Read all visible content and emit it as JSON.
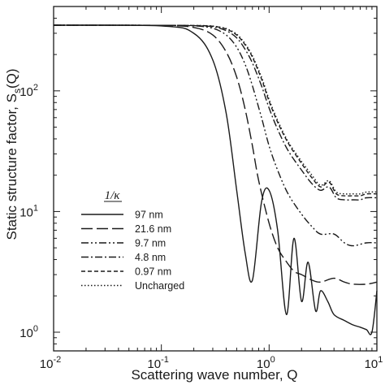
{
  "chart_data": {
    "type": "line",
    "xscale": "log",
    "yscale": "log",
    "xlim": [
      0.01,
      10
    ],
    "ylim": [
      0.7,
      500
    ],
    "xlabel": "Scattering wave number, Q",
    "ylabel": "Static structure factor, S_s(Q)",
    "x_ticks": [
      {
        "value": 0.01,
        "base": "10",
        "exp": "-2"
      },
      {
        "value": 0.1,
        "base": "10",
        "exp": "-1"
      },
      {
        "value": 1,
        "base": "10",
        "exp": "0"
      },
      {
        "value": 10,
        "base": "10",
        "exp": "1"
      }
    ],
    "y_ticks": [
      {
        "value": 1,
        "base": "10",
        "exp": "0"
      },
      {
        "value": 10,
        "base": "10",
        "exp": "1"
      },
      {
        "value": 100,
        "base": "10",
        "exp": "2"
      }
    ],
    "legend": {
      "title": "1/κ",
      "placement": "lower-left"
    },
    "series": [
      {
        "name": "97 nm",
        "dash": "solid",
        "x": [
          0.01,
          0.1,
          0.2,
          0.3,
          0.4,
          0.5,
          0.6,
          0.7,
          0.85,
          1.0,
          1.2,
          1.45,
          1.7,
          2.0,
          2.3,
          2.7,
          3.0,
          3.5,
          4.0,
          5.0,
          6.0,
          7.0,
          8.0,
          9.0,
          10.0
        ],
        "y": [
          350,
          345,
          300,
          180,
          65,
          15,
          4.5,
          2.7,
          12,
          15,
          7,
          1.4,
          6,
          1.8,
          3.8,
          1.5,
          2.2,
          1.8,
          1.4,
          1.25,
          1.15,
          1.1,
          1.05,
          1.0,
          2.2
        ]
      },
      {
        "name": "21.6 nm",
        "dash": "longdash",
        "x": [
          0.01,
          0.1,
          0.2,
          0.3,
          0.4,
          0.5,
          0.6,
          0.7,
          0.8,
          1.0,
          1.2,
          1.4,
          1.7,
          2.0,
          2.5,
          3.0,
          4.0,
          5.0,
          6.0,
          8.0,
          10.0
        ],
        "y": [
          350,
          348,
          335,
          290,
          210,
          130,
          70,
          35,
          18,
          8,
          5,
          4,
          3.2,
          3.0,
          2.7,
          2.6,
          2.8,
          2.6,
          2.5,
          2.5,
          2.6
        ]
      },
      {
        "name": "9.7 nm",
        "dash": "dashdotdot",
        "x": [
          0.01,
          0.1,
          0.2,
          0.3,
          0.4,
          0.5,
          0.6,
          0.7,
          0.85,
          1.0,
          1.2,
          1.5,
          2.0,
          2.5,
          3.0,
          4.0,
          5.0,
          6.0,
          8.0,
          10.0
        ],
        "y": [
          350,
          349,
          345,
          330,
          290,
          230,
          165,
          110,
          60,
          35,
          22,
          14,
          9.5,
          7.5,
          6.5,
          6.5,
          5.5,
          5.2,
          5.5,
          5.5
        ]
      },
      {
        "name": "4.8 nm",
        "dash": "dashdot",
        "x": [
          0.01,
          0.1,
          0.2,
          0.3,
          0.4,
          0.5,
          0.6,
          0.7,
          0.85,
          1.0,
          1.2,
          1.5,
          2.0,
          2.5,
          3.0,
          3.6,
          4.2,
          5.0,
          6.0,
          7.0,
          8.0,
          10.0
        ],
        "y": [
          350,
          349,
          347,
          340,
          315,
          275,
          220,
          170,
          110,
          72,
          48,
          32,
          22,
          17,
          15,
          16,
          13,
          12.5,
          12.5,
          12.5,
          13,
          13
        ]
      },
      {
        "name": "0.97 nm",
        "dash": "shortdash",
        "x": [
          0.01,
          0.1,
          0.2,
          0.3,
          0.4,
          0.5,
          0.6,
          0.7,
          0.85,
          1.0,
          1.2,
          1.5,
          2.0,
          2.5,
          3.0,
          3.6,
          4.2,
          5.0,
          6.0,
          7.0,
          8.0,
          10.0
        ],
        "y": [
          350,
          349,
          348,
          343,
          325,
          290,
          240,
          190,
          125,
          82,
          55,
          37,
          25,
          19,
          16,
          17.5,
          14,
          13.5,
          13.5,
          13.5,
          14,
          14
        ]
      },
      {
        "name": "Uncharged",
        "dash": "dotted",
        "x": [
          0.01,
          0.1,
          0.2,
          0.3,
          0.4,
          0.5,
          0.6,
          0.7,
          0.85,
          1.0,
          1.2,
          1.5,
          2.0,
          2.5,
          3.0,
          3.6,
          4.2,
          5.0,
          6.0,
          7.0,
          8.0,
          10.0
        ],
        "y": [
          350,
          349,
          348,
          344,
          328,
          295,
          245,
          195,
          130,
          85,
          57,
          38,
          26,
          20,
          16.5,
          18,
          14.5,
          14,
          14,
          14,
          14.5,
          14.5
        ]
      }
    ],
    "colors": {
      "line": "#1a1a1a",
      "axis": "#1a1a1a",
      "background": "#ffffff"
    }
  }
}
